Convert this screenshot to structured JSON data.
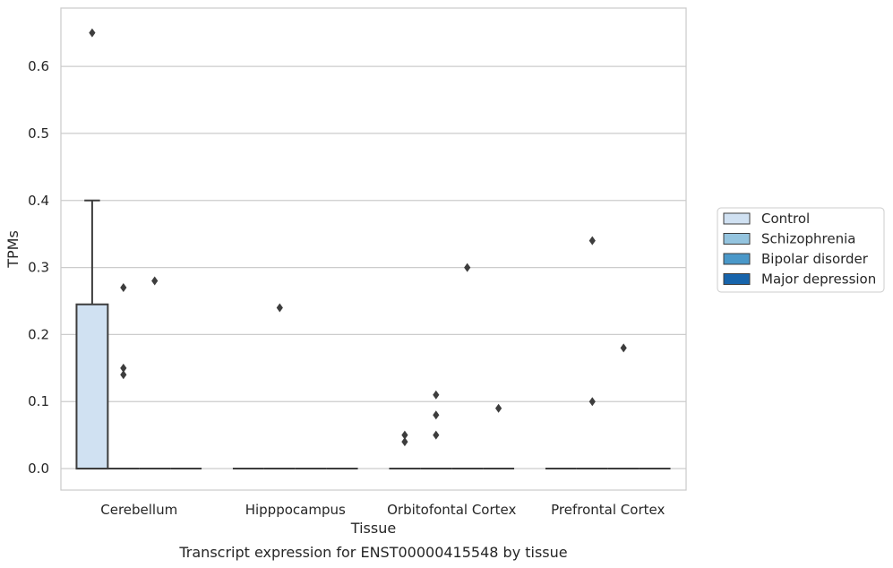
{
  "caption": "Transcript expression for ENST00000415548 by tissue",
  "chart_data": {
    "type": "box",
    "title": "",
    "xlabel": "Tissue",
    "ylabel": "TPMs",
    "ylim": [
      -0.032,
      0.687
    ],
    "yticks": [
      0.0,
      0.1,
      0.2,
      0.3,
      0.4,
      0.5,
      0.6
    ],
    "ytick_labels": [
      "0.0",
      "0.1",
      "0.2",
      "0.3",
      "0.4",
      "0.5",
      "0.6"
    ],
    "grid": "horizontal",
    "legend_position": "right",
    "categories": [
      "Cerebellum",
      "Hipppocampus",
      "Orbitofontal Cortex",
      "Prefrontal Cortex"
    ],
    "series": [
      {
        "name": "Control",
        "color": "#d0e1f2",
        "boxes": [
          {
            "q1": 0.0,
            "median": 0.0,
            "q3": 0.245,
            "whisker_low": 0.0,
            "whisker_high": 0.4,
            "outliers": [
              0.65
            ]
          },
          {
            "q1": 0.0,
            "median": 0.0,
            "q3": 0.0,
            "whisker_low": 0.0,
            "whisker_high": 0.0,
            "outliers": []
          },
          {
            "q1": 0.0,
            "median": 0.0,
            "q3": 0.0,
            "whisker_low": 0.0,
            "whisker_high": 0.0,
            "outliers": [
              0.04,
              0.05
            ]
          },
          {
            "q1": 0.0,
            "median": 0.0,
            "q3": 0.0,
            "whisker_low": 0.0,
            "whisker_high": 0.0,
            "outliers": []
          }
        ]
      },
      {
        "name": "Schizophrenia",
        "color": "#94c4df",
        "boxes": [
          {
            "q1": 0.0,
            "median": 0.0,
            "q3": 0.0,
            "whisker_low": 0.0,
            "whisker_high": 0.0,
            "outliers": [
              0.27,
              0.15,
              0.14
            ]
          },
          {
            "q1": 0.0,
            "median": 0.0,
            "q3": 0.0,
            "whisker_low": 0.0,
            "whisker_high": 0.0,
            "outliers": [
              0.24
            ]
          },
          {
            "q1": 0.0,
            "median": 0.0,
            "q3": 0.0,
            "whisker_low": 0.0,
            "whisker_high": 0.0,
            "outliers": [
              0.11,
              0.08,
              0.05
            ]
          },
          {
            "q1": 0.0,
            "median": 0.0,
            "q3": 0.0,
            "whisker_low": 0.0,
            "whisker_high": 0.0,
            "outliers": [
              0.34,
              0.1
            ]
          }
        ]
      },
      {
        "name": "Bipolar disorder",
        "color": "#4a98c9",
        "boxes": [
          {
            "q1": 0.0,
            "median": 0.0,
            "q3": 0.0,
            "whisker_low": 0.0,
            "whisker_high": 0.0,
            "outliers": [
              0.28
            ]
          },
          {
            "q1": 0.0,
            "median": 0.0,
            "q3": 0.0,
            "whisker_low": 0.0,
            "whisker_high": 0.0,
            "outliers": []
          },
          {
            "q1": 0.0,
            "median": 0.0,
            "q3": 0.0,
            "whisker_low": 0.0,
            "whisker_high": 0.0,
            "outliers": [
              0.3
            ]
          },
          {
            "q1": 0.0,
            "median": 0.0,
            "q3": 0.0,
            "whisker_low": 0.0,
            "whisker_high": 0.0,
            "outliers": [
              0.18
            ]
          }
        ]
      },
      {
        "name": "Major depression",
        "color": "#1764ab",
        "boxes": [
          {
            "q1": 0.0,
            "median": 0.0,
            "q3": 0.0,
            "whisker_low": 0.0,
            "whisker_high": 0.0,
            "outliers": []
          },
          {
            "q1": 0.0,
            "median": 0.0,
            "q3": 0.0,
            "whisker_low": 0.0,
            "whisker_high": 0.0,
            "outliers": []
          },
          {
            "q1": 0.0,
            "median": 0.0,
            "q3": 0.0,
            "whisker_low": 0.0,
            "whisker_high": 0.0,
            "outliers": [
              0.09
            ]
          },
          {
            "q1": 0.0,
            "median": 0.0,
            "q3": 0.0,
            "whisker_low": 0.0,
            "whisker_high": 0.0,
            "outliers": []
          }
        ]
      }
    ]
  }
}
